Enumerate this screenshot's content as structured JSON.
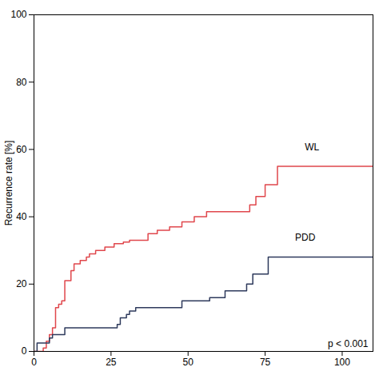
{
  "chart_data": {
    "type": "line",
    "y_label": "Recurrence rate [%]",
    "annotation": "p < 0.001",
    "line_style": "step",
    "xlim": [
      0,
      110
    ],
    "xticks": [
      0,
      25,
      50,
      75,
      100
    ],
    "ylim": [
      0,
      100
    ],
    "yticks": [
      0,
      20,
      40,
      60,
      80,
      100
    ],
    "series": [
      {
        "name": "WL",
        "color": "#e0474c",
        "x": [
          0,
          3,
          4,
          5,
          6,
          7,
          8,
          9,
          10,
          12,
          13,
          15,
          17,
          18,
          20,
          23,
          26,
          29,
          31,
          37,
          40,
          44,
          48,
          52,
          56,
          70,
          72,
          75,
          79,
          110
        ],
        "values": [
          0,
          1,
          3,
          5,
          7,
          13,
          14,
          15,
          21,
          24,
          26,
          27,
          28,
          29,
          30,
          31,
          32,
          32.5,
          33,
          35,
          36,
          37,
          38.5,
          40,
          41.5,
          43.5,
          46,
          49.5,
          55,
          55
        ]
      },
      {
        "name": "PDD",
        "color": "#2e3a5c",
        "x": [
          0,
          1,
          5,
          6,
          10,
          27,
          28,
          30,
          31,
          33,
          48,
          57,
          62,
          69,
          71,
          76,
          110
        ],
        "values": [
          0,
          2.5,
          4,
          5,
          7,
          8,
          10,
          11,
          12,
          13,
          15,
          16,
          18,
          20,
          23,
          28,
          28
        ]
      }
    ]
  }
}
